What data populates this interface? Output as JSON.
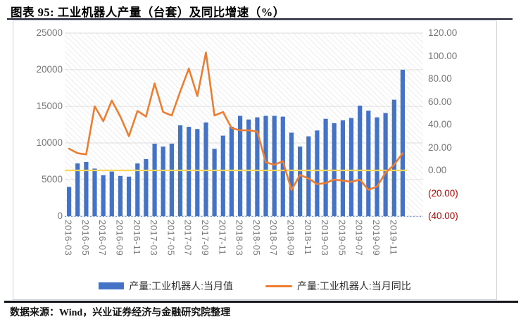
{
  "header": {
    "title": "图表 95:  工业机器人产量（台套）及同比增速（%）"
  },
  "footer": {
    "source": "数据来源：Wind，兴业证券经济与金融研究院整理"
  },
  "chart_data": {
    "type": "bar+line",
    "title": "工业机器人产量（台套）及同比增速（%）",
    "categories": [
      "2016-03",
      "2016-04",
      "2016-05",
      "2016-06",
      "2016-07",
      "2016-08",
      "2016-09",
      "2016-10",
      "2016-11",
      "2016-12",
      "2017-03",
      "2017-04",
      "2017-05",
      "2017-06",
      "2017-07",
      "2017-08",
      "2017-09",
      "2017-10",
      "2017-11",
      "2017-12",
      "2018-03",
      "2018-04",
      "2018-05",
      "2018-06",
      "2018-07",
      "2018-08",
      "2018-09",
      "2018-10",
      "2018-11",
      "2018-12",
      "2019-03",
      "2019-04",
      "2019-05",
      "2019-06",
      "2019-07",
      "2019-08",
      "2019-09",
      "2019-10",
      "2019-11",
      "2019-12"
    ],
    "series": [
      {
        "name": "产量:工业机器人:当月值",
        "type": "bar",
        "axis": "left",
        "color": "#4472c4",
        "values": [
          4000,
          7200,
          7400,
          6500,
          5600,
          6100,
          5500,
          5400,
          7200,
          7800,
          9900,
          9500,
          9900,
          12400,
          12200,
          11900,
          12800,
          9200,
          11000,
          12200,
          13700,
          13200,
          13500,
          13700,
          13700,
          13600,
          11400,
          9500,
          10900,
          11700,
          13300,
          12700,
          13100,
          13400,
          15100,
          14400,
          13500,
          14100,
          15900,
          20000
        ]
      },
      {
        "name": "产量:工业机器人:当月同比",
        "type": "line",
        "axis": "right",
        "color": "#ed7d31",
        "values": [
          19,
          15,
          14,
          56,
          43,
          61,
          47,
          30,
          52,
          47,
          76,
          51,
          48,
          69,
          89,
          65,
          103,
          48,
          51,
          37,
          35,
          35,
          34,
          7,
          5,
          8,
          -17,
          -4,
          -7,
          -12,
          -11,
          -8,
          -9,
          -10,
          -8,
          -17,
          -14,
          -2,
          5,
          15
        ]
      }
    ],
    "x_tick_labels": [
      "2016-03",
      "2016-05",
      "2016-07",
      "2016-09",
      "2016-11",
      "2017-03",
      "2017-05",
      "2017-07",
      "2017-09",
      "2017-11",
      "2018-03",
      "2018-05",
      "2018-07",
      "2018-09",
      "2018-11",
      "2019-03",
      "2019-05",
      "2019-07",
      "2019-09",
      "2019-11"
    ],
    "left_axis": {
      "min": 0,
      "max": 25000,
      "ticks": [
        "0",
        "5000",
        "10000",
        "15000",
        "20000",
        "25000"
      ]
    },
    "right_axis": {
      "min": -40,
      "max": 120,
      "ticks": [
        "120.00",
        "100.00",
        "80.00",
        "60.00",
        "40.00",
        "20.00",
        "0.00",
        "(20.00)",
        "(40.00)"
      ],
      "negative_color": "#c00000"
    },
    "zero_line": {
      "value": 0,
      "color": "#fbd65a"
    },
    "grid": true,
    "grid_color": "#dcdcdc",
    "x_axis_line_color": "#7c9cd6",
    "legend_position": "bottom"
  }
}
